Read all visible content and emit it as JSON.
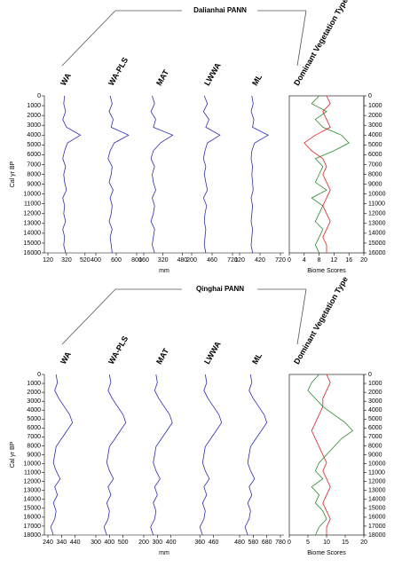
{
  "chart_data": [
    {
      "type": "line",
      "title": "Dalianhai PANN",
      "y_label": "Cal yr BP",
      "x_label": "mm",
      "ylim": [
        0,
        16000
      ],
      "yticks": [
        0,
        1000,
        2000,
        3000,
        4000,
        5000,
        6000,
        7000,
        8000,
        9000,
        10000,
        11000,
        12000,
        13000,
        14000,
        15000,
        16000
      ],
      "y": [
        0,
        800,
        1600,
        2400,
        3200,
        4000,
        4800,
        5600,
        6400,
        7200,
        8000,
        8800,
        9600,
        10400,
        11200,
        12000,
        12800,
        13600,
        14400,
        15200,
        16000
      ],
      "series": [
        {
          "name": "WA",
          "color": "#2b2bb8",
          "xlim": [
            120,
            560
          ],
          "xticks": [
            120,
            320,
            520
          ],
          "values": [
            300,
            290,
            310,
            280,
            320,
            470,
            330,
            300,
            280,
            310,
            290,
            300,
            320,
            280,
            300,
            290,
            310,
            280,
            300,
            290,
            310
          ]
        },
        {
          "name": "WA-PLS",
          "color": "#2b2bb8",
          "xlim": [
            400,
            800
          ],
          "xticks": [
            400,
            600,
            800
          ],
          "values": [
            540,
            560,
            530,
            570,
            550,
            720,
            580,
            540,
            520,
            560,
            550,
            530,
            570,
            540,
            560,
            550,
            530,
            560,
            540,
            550,
            560
          ]
        },
        {
          "name": "MAT",
          "color": "#2b2bb8",
          "xlim": [
            160,
            500
          ],
          "xticks": [
            160,
            320,
            480
          ],
          "values": [
            230,
            250,
            220,
            260,
            240,
            400,
            300,
            240,
            220,
            250,
            230,
            240,
            260,
            230,
            250,
            240,
            220,
            250,
            240,
            230,
            250
          ]
        },
        {
          "name": "LWWA",
          "color": "#2b2bb8",
          "xlim": [
            200,
            720
          ],
          "xticks": [
            200,
            460,
            720
          ],
          "values": [
            360,
            400,
            350,
            420,
            380,
            560,
            400,
            370,
            350,
            380,
            360,
            380,
            400,
            350,
            390,
            370,
            360,
            380,
            370,
            360,
            380
          ]
        },
        {
          "name": "ML",
          "color": "#2b2bb8",
          "xlim": [
            120,
            720
          ],
          "xticks": [
            120,
            420,
            720
          ],
          "values": [
            300,
            320,
            290,
            330,
            310,
            540,
            340,
            300,
            290,
            310,
            300,
            310,
            320,
            290,
            310,
            300,
            290,
            310,
            300,
            290,
            310
          ]
        }
      ],
      "biome": {
        "title": "Dominant Vegetation Type",
        "x_label": "Biome Scores",
        "xlim": [
          0,
          20
        ],
        "xticks": [
          0,
          4,
          8,
          12,
          16,
          20
        ],
        "series": [
          {
            "color": "#2a8a2a",
            "values": [
              8,
              6,
              10,
              7,
              9,
              14,
              16,
              12,
              7,
              9,
              8,
              7,
              10,
              6,
              9,
              8,
              7,
              9,
              8,
              7,
              8
            ]
          },
          {
            "color": "#e02020",
            "values": [
              10,
              11,
              9,
              10,
              11,
              7,
              4,
              6,
              9,
              10,
              9,
              10,
              11,
              10,
              9,
              10,
              11,
              10,
              9,
              10,
              10
            ]
          }
        ]
      }
    },
    {
      "type": "line",
      "title": "Qinghai PANN",
      "y_label": "Cal yr BP",
      "x_label": "mm",
      "ylim": [
        0,
        18000
      ],
      "yticks": [
        0,
        1000,
        2000,
        3000,
        4000,
        5000,
        6000,
        7000,
        8000,
        9000,
        10000,
        11000,
        12000,
        13000,
        14000,
        15000,
        16000,
        17000,
        18000
      ],
      "y": [
        0,
        900,
        1800,
        2700,
        3600,
        4500,
        5400,
        6300,
        7200,
        8100,
        9000,
        9900,
        10800,
        11700,
        12600,
        13500,
        14400,
        15300,
        16200,
        17100,
        18000
      ],
      "series": [
        {
          "name": "WA",
          "color": "#2b2bb8",
          "xlim": [
            240,
            540
          ],
          "xticks": [
            240,
            340,
            440
          ],
          "values": [
            300,
            310,
            290,
            320,
            360,
            400,
            420,
            380,
            340,
            300,
            290,
            280,
            300,
            330,
            290,
            310,
            280,
            300,
            290,
            260,
            280
          ]
        },
        {
          "name": "WA-PLS",
          "color": "#2b2bb8",
          "xlim": [
            300,
            600
          ],
          "xticks": [
            300,
            400,
            500
          ],
          "values": [
            400,
            410,
            390,
            420,
            460,
            500,
            520,
            480,
            440,
            400,
            390,
            380,
            400,
            430,
            390,
            410,
            380,
            400,
            390,
            360,
            380
          ]
        },
        {
          "name": "MAT",
          "color": "#2b2bb8",
          "xlim": [
            200,
            500
          ],
          "xticks": [
            200,
            300,
            400
          ],
          "values": [
            290,
            300,
            280,
            310,
            350,
            390,
            410,
            370,
            330,
            290,
            280,
            270,
            290,
            320,
            280,
            300,
            270,
            290,
            280,
            250,
            270
          ]
        },
        {
          "name": "LWWA",
          "color": "#2b2bb8",
          "xlim": [
            300,
            600
          ],
          "xticks": [
            360,
            460
          ],
          "values": [
            400,
            410,
            390,
            420,
            460,
            500,
            520,
            480,
            440,
            400,
            390,
            380,
            400,
            430,
            390,
            410,
            380,
            400,
            390,
            360,
            380
          ]
        },
        {
          "name": "ML",
          "color": "#2b2bb8",
          "xlim": [
            480,
            780
          ],
          "xticks": [
            480,
            580,
            680,
            780
          ],
          "values": [
            560,
            570,
            550,
            580,
            620,
            660,
            680,
            640,
            600,
            560,
            550,
            540,
            560,
            590,
            550,
            570,
            540,
            560,
            550,
            520,
            540
          ]
        }
      ],
      "biome": {
        "title": "Dominant Vegetation Type",
        "x_label": "Biome Scores",
        "xlim": [
          0,
          20
        ],
        "xticks": [
          0,
          5,
          10,
          15,
          20
        ],
        "series": [
          {
            "color": "#2a8a2a",
            "values": [
              8,
              6,
              5,
              7,
              9,
              12,
              15,
              17,
              14,
              12,
              10,
              8,
              7,
              9,
              6,
              8,
              7,
              9,
              10,
              8,
              7
            ]
          },
          {
            "color": "#e02020",
            "values": [
              10,
              11,
              10,
              9,
              9,
              8,
              7,
              6,
              7,
              8,
              9,
              10,
              9,
              10,
              11,
              10,
              9,
              10,
              11,
              10,
              10
            ]
          }
        ]
      }
    }
  ]
}
